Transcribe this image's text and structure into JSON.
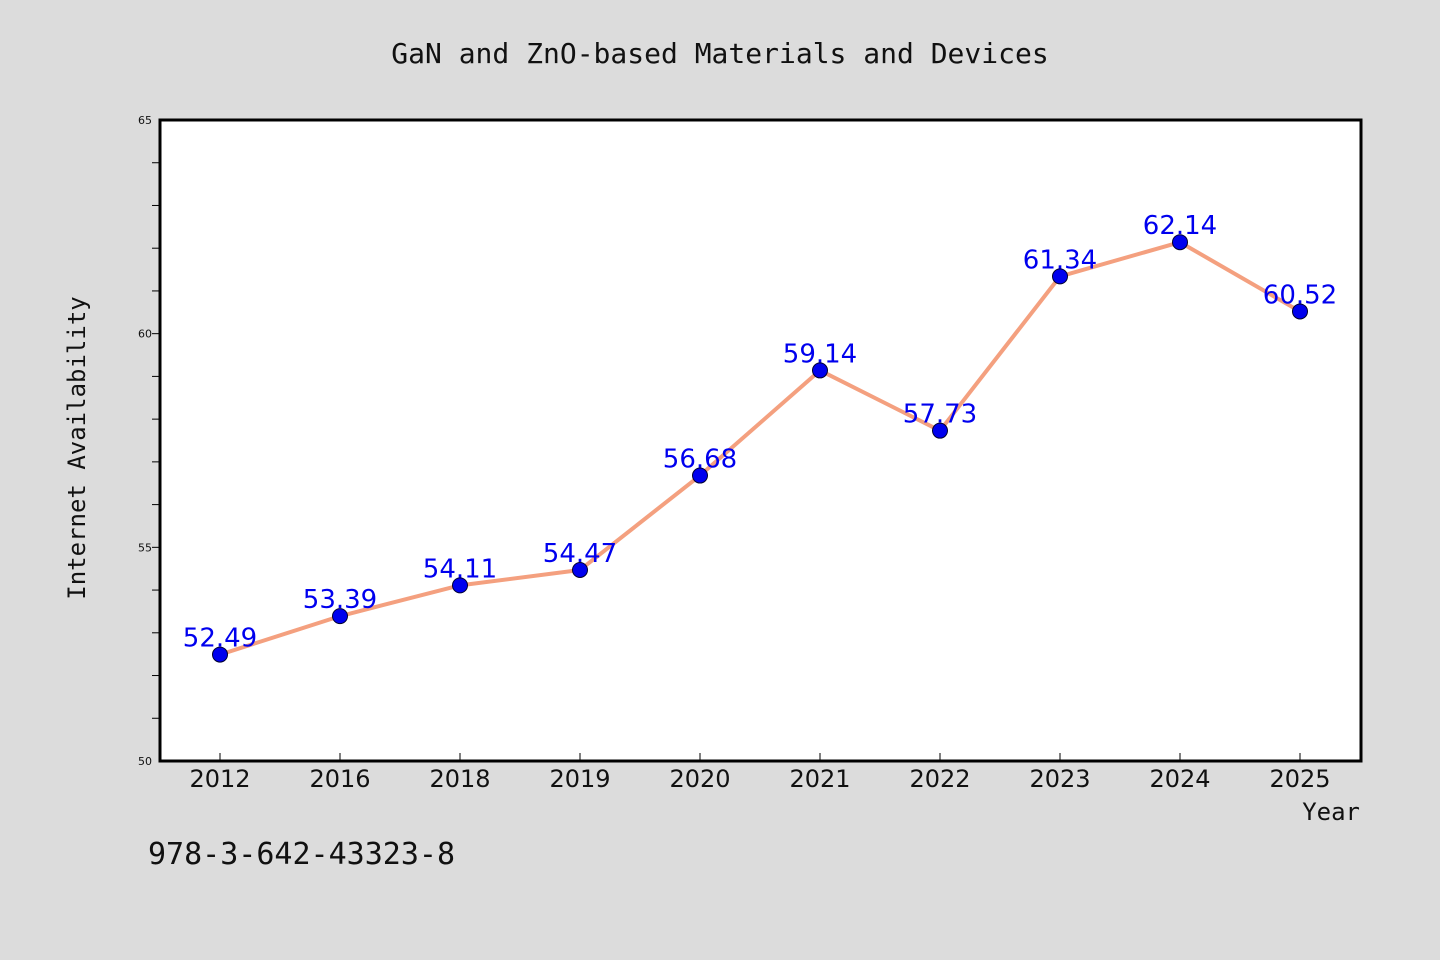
{
  "colors": {
    "background": "#dcdcdc",
    "plot_background": "#ffffff",
    "line": "#f4a07f",
    "marker": "#0000ee",
    "label": "#0000ee"
  },
  "footer": {
    "isbn": "978-3-642-43323-8"
  },
  "chart_data": {
    "type": "line",
    "title": "GaN and ZnO-based Materials and Devices",
    "xlabel": "Year",
    "ylabel": "Internet Availability",
    "categories": [
      "2012",
      "2016",
      "2018",
      "2019",
      "2020",
      "2021",
      "2022",
      "2023",
      "2024",
      "2025"
    ],
    "values": [
      52.49,
      53.39,
      54.11,
      54.47,
      56.68,
      59.14,
      57.73,
      61.34,
      62.14,
      60.52
    ],
    "value_labels": [
      "52.49",
      "53.39",
      "54.11",
      "54.47",
      "56.68",
      "59.14",
      "57.73",
      "61.34",
      "62.14",
      "60.52"
    ],
    "ylim": [
      50,
      65
    ],
    "yticks": [
      "50",
      "55",
      "60",
      "65"
    ],
    "grid": false,
    "legend": "none"
  }
}
